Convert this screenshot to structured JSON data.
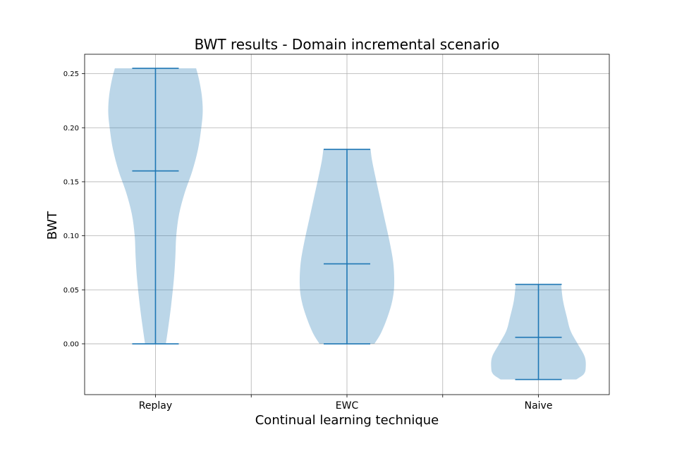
{
  "chart_data": {
    "type": "violin",
    "title": "BWT results - Domain incremental scenario",
    "xlabel": "Continual learning technique",
    "ylabel": "BWT",
    "categories": [
      "Replay",
      "EWC",
      "Naive"
    ],
    "ylim": [
      -0.047,
      0.268
    ],
    "yticks": [
      0.0,
      0.05,
      0.1,
      0.15,
      0.2,
      0.25
    ],
    "ytick_labels": [
      "0.00",
      "0.05",
      "0.10",
      "0.15",
      "0.20",
      "0.25"
    ],
    "grid": true,
    "colors": {
      "body": "#1f77b4",
      "body_opacity": 0.3,
      "lines": "#1f77b4"
    },
    "violins": [
      {
        "category": "Replay",
        "min": 0.0,
        "max": 0.255,
        "median": 0.16,
        "profile": [
          [
            0.0,
            0.22
          ],
          [
            0.015,
            0.27
          ],
          [
            0.035,
            0.33
          ],
          [
            0.06,
            0.39
          ],
          [
            0.08,
            0.42
          ],
          [
            0.1,
            0.44
          ],
          [
            0.12,
            0.5
          ],
          [
            0.14,
            0.62
          ],
          [
            0.16,
            0.78
          ],
          [
            0.18,
            0.9
          ],
          [
            0.2,
            0.97
          ],
          [
            0.215,
            1.0
          ],
          [
            0.23,
            0.98
          ],
          [
            0.245,
            0.92
          ],
          [
            0.255,
            0.86
          ]
        ]
      },
      {
        "category": "EWC",
        "min": 0.0,
        "max": 0.18,
        "median": 0.074,
        "profile": [
          [
            0.0,
            0.58
          ],
          [
            0.01,
            0.72
          ],
          [
            0.025,
            0.86
          ],
          [
            0.04,
            0.96
          ],
          [
            0.055,
            1.0
          ],
          [
            0.075,
            0.98
          ],
          [
            0.095,
            0.9
          ],
          [
            0.115,
            0.8
          ],
          [
            0.135,
            0.7
          ],
          [
            0.155,
            0.6
          ],
          [
            0.17,
            0.53
          ],
          [
            0.18,
            0.5
          ]
        ]
      },
      {
        "category": "Naive",
        "min": -0.033,
        "max": 0.055,
        "median": 0.006,
        "profile": [
          [
            -0.033,
            0.8
          ],
          [
            -0.028,
            0.96
          ],
          [
            -0.022,
            1.0
          ],
          [
            -0.012,
            0.98
          ],
          [
            0.0,
            0.83
          ],
          [
            0.012,
            0.68
          ],
          [
            0.025,
            0.6
          ],
          [
            0.04,
            0.52
          ],
          [
            0.055,
            0.48
          ]
        ]
      }
    ]
  }
}
